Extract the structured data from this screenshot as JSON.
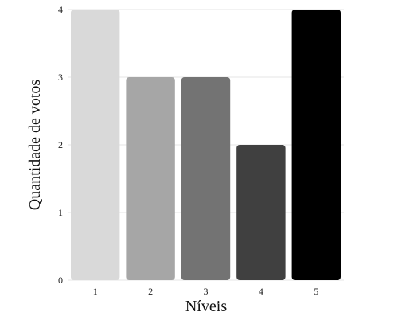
{
  "chart_data": {
    "type": "bar",
    "categories": [
      "1",
      "2",
      "3",
      "4",
      "5"
    ],
    "values": [
      4,
      3,
      3,
      2,
      4
    ],
    "colors": [
      "#d9d9d9",
      "#a6a6a6",
      "#737373",
      "#404040",
      "#000000"
    ],
    "xlabel": "Níveis",
    "ylabel": "Quantidade de votos",
    "ylim": [
      0,
      4
    ],
    "yticks": [
      "0",
      "1",
      "2",
      "3",
      "4"
    ],
    "grid": true,
    "legend": "none"
  }
}
